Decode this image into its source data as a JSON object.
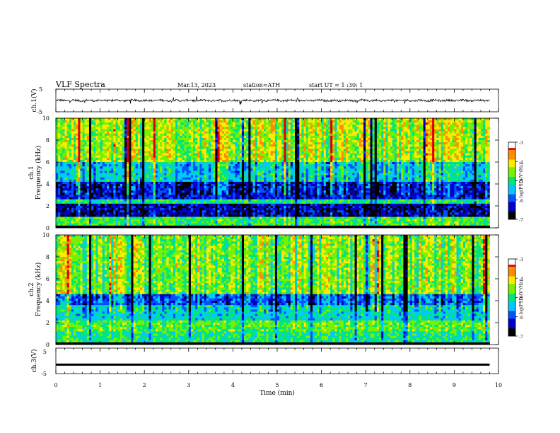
{
  "header": {
    "title": "VLF  Spectra",
    "date": "Mar.13, 2023",
    "station": "station=ATH",
    "start": "start  UT  =   1  :30: 1"
  },
  "chart_data": [
    {
      "type": "line",
      "panel": "ch1-waveform",
      "ylabel": "ch.1(V)",
      "ylim": [
        -5,
        5
      ],
      "yticks": [
        "5",
        "-5"
      ],
      "xlim": [
        0,
        10
      ],
      "series": [
        {
          "color": "#000000",
          "baseline": 0,
          "note_values": "noisy waveform around 0 V with spikes up to about ±1.5 V"
        }
      ]
    },
    {
      "type": "heatmap",
      "panel": "ch1-spectrogram",
      "ylabel_line1": "ch.1",
      "ylabel_line2": "Frequency (kHz)",
      "ylim": [
        0,
        10
      ],
      "yticks": [
        "0",
        "2",
        "4",
        "6",
        "8",
        "10"
      ],
      "xlim": [
        0,
        9.8
      ],
      "colorbar": {
        "label": "log(PSD)(V²/Hz)",
        "range": [
          -7,
          -3
        ],
        "ticks": [
          "-3",
          "-4",
          "-5",
          "-6",
          "-7"
        ]
      },
      "bands": [
        {
          "from_khz": 0,
          "to_khz": 0.3,
          "log_psd": -7
        },
        {
          "from_khz": 0.3,
          "to_khz": 1.0,
          "log_psd": -4.8
        },
        {
          "from_khz": 1.0,
          "to_khz": 2.2,
          "log_psd": -6.4
        },
        {
          "from_khz": 2.2,
          "to_khz": 2.6,
          "log_psd": -5.0
        },
        {
          "from_khz": 2.6,
          "to_khz": 4.2,
          "log_psd": -6.2
        },
        {
          "from_khz": 4.2,
          "to_khz": 6.0,
          "log_psd": -5.3
        },
        {
          "from_khz": 6.0,
          "to_khz": 10,
          "log_psd": -4.4
        }
      ]
    },
    {
      "type": "heatmap",
      "panel": "ch2-spectrogram",
      "ylabel_line1": "ch.2",
      "ylabel_line2": "Frequency (kHz)",
      "ylim": [
        0,
        10
      ],
      "yticks": [
        "0",
        "2",
        "4",
        "6",
        "8",
        "10"
      ],
      "xlim": [
        0,
        9.8
      ],
      "colorbar": {
        "label": "log(PSD)(V²/Hz)",
        "range": [
          -7,
          -3
        ],
        "ticks": [
          "-3",
          "-4",
          "-5",
          "-6",
          "-7"
        ]
      },
      "bands": [
        {
          "from_khz": 0,
          "to_khz": 0.3,
          "log_psd": -7
        },
        {
          "from_khz": 0.3,
          "to_khz": 1.2,
          "log_psd": -5.0
        },
        {
          "from_khz": 1.2,
          "to_khz": 2.2,
          "log_psd": -4.7
        },
        {
          "from_khz": 2.2,
          "to_khz": 3.6,
          "log_psd": -5.3
        },
        {
          "from_khz": 3.6,
          "to_khz": 4.6,
          "log_psd": -5.9
        },
        {
          "from_khz": 4.6,
          "to_khz": 10,
          "log_psd": -4.6
        }
      ]
    },
    {
      "type": "line",
      "panel": "ch3-waveform",
      "ylabel": "ch.3(V)",
      "ylim": [
        -5,
        5
      ],
      "yticks": [
        "5",
        "-5"
      ],
      "xlim": [
        0,
        10
      ],
      "series": [
        {
          "color": "#000000",
          "constant_value": -1.5
        }
      ]
    }
  ],
  "xaxis": {
    "label": "Time  (min)",
    "range": [
      0,
      10
    ],
    "ticks": [
      "0",
      "1",
      "2",
      "3",
      "4",
      "5",
      "6",
      "7",
      "8",
      "9",
      "10"
    ]
  },
  "colors": {
    "colormap": [
      "#000000",
      "#0000c8",
      "#0050ff",
      "#00c8ff",
      "#00e678",
      "#78f000",
      "#ffeb00",
      "#ff8c00",
      "#dc0000",
      "#ffffff"
    ]
  }
}
